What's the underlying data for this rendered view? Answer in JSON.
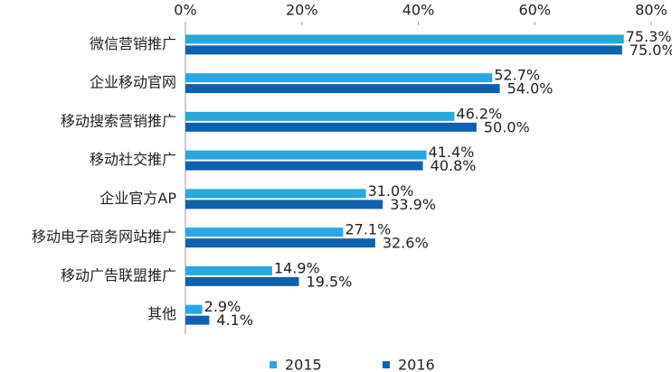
{
  "chart_data": {
    "type": "bar",
    "orientation": "horizontal",
    "categories": [
      "微信营销推广",
      "企业移动官网",
      "移动搜索营销推广",
      "移动社交推广",
      "企业官方AP",
      "移动电子商务网站推广",
      "移动广告联盟推广",
      "其他"
    ],
    "series": [
      {
        "name": "2015",
        "color": "#29a8e0",
        "values": [
          75.3,
          52.7,
          46.2,
          41.4,
          31.0,
          27.1,
          14.9,
          2.9
        ],
        "value_labels": [
          "75.3%",
          "52.7%",
          "46.2%",
          "41.4%",
          "31.0%",
          "27.1%",
          "14.9%",
          "2.9%"
        ]
      },
      {
        "name": "2016",
        "color": "#1060b0",
        "values": [
          75.0,
          54.0,
          50.0,
          40.8,
          33.9,
          32.6,
          19.5,
          4.1
        ],
        "value_labels": [
          "75.0%",
          "54.0%",
          "50.0%",
          "40.8%",
          "33.9%",
          "32.6%",
          "19.5%",
          "4.1%"
        ]
      }
    ],
    "xlim": [
      0,
      80
    ],
    "xticks": [
      {
        "value": 0,
        "label": "0%"
      },
      {
        "value": 20,
        "label": "20%"
      },
      {
        "value": 40,
        "label": "40%"
      },
      {
        "value": 60,
        "label": "60%"
      },
      {
        "value": 80,
        "label": "80%"
      }
    ],
    "legend": "bottom"
  }
}
